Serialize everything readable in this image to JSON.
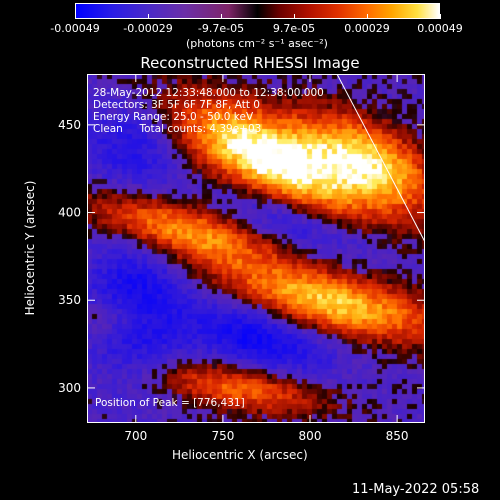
{
  "colorbar": {
    "ticks": [
      "-0.00049",
      "-0.00029",
      "-9.7e-05",
      "9.7e-05",
      "0.00029",
      "0.00049"
    ],
    "unit_label": "(photons cm⁻² s⁻¹ asec⁻²)"
  },
  "chart_data": {
    "type": "heatmap",
    "title": "Reconstructed RHESSI Image",
    "xlabel": "Heliocentric X (arcsec)",
    "ylabel": "Heliocentric Y (arcsec)",
    "xlim": [
      672,
      866
    ],
    "ylim": [
      280,
      479
    ],
    "xticks": [
      700,
      750,
      800,
      850
    ],
    "yticks": [
      300,
      350,
      400,
      450
    ],
    "colormap": "blue-purple-black-red-orange-yellow-white",
    "info_lines": [
      "28-May-2012 12:33:48.000 to 12:38:00.000",
      "Detectors: 3F 5F 6F 7F 8F, Att 0",
      "Energy Range: 25.0 - 50.0 keV",
      "Clean     Total counts: 4.39e+03"
    ],
    "peak_label": "Position of Peak = [776,431]",
    "peak": [
      776,
      431
    ],
    "limb_line": true
  },
  "timestamp": "11-May-2022 05:58"
}
